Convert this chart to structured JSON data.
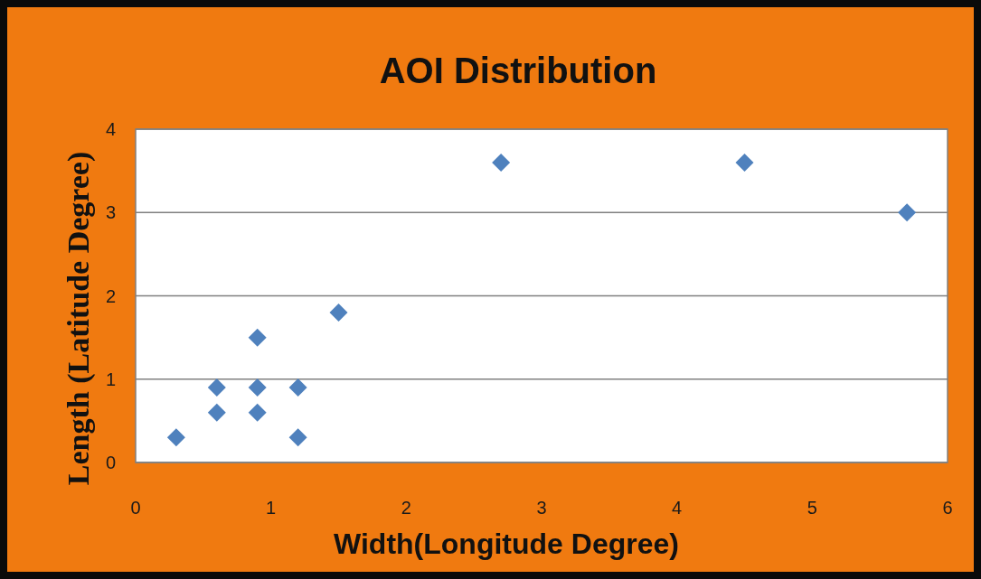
{
  "chart_data": {
    "type": "scatter",
    "title": "AOI Distribution",
    "xlabel": "Width(Longitude  Degree)",
    "ylabel": "Length (Latitude Degree)",
    "x": [
      0.3,
      0.6,
      0.6,
      0.9,
      0.9,
      0.9,
      1.2,
      1.2,
      1.5,
      2.7,
      4.5,
      5.7
    ],
    "series": [
      {
        "color": "#4f81bd",
        "values": [
          0.3,
          0.6,
          0.9,
          1.5,
          0.9,
          0.6,
          0.9,
          0.3,
          1.8,
          3.6,
          3.6,
          3.0
        ]
      }
    ],
    "xlim": [
      0,
      6
    ],
    "xticks": [
      0,
      1,
      2,
      3,
      4,
      5,
      6
    ],
    "ylim": [
      0,
      4
    ],
    "yticks": [
      0,
      1,
      2,
      3,
      4
    ],
    "grid": "y",
    "marker": "diamond"
  }
}
